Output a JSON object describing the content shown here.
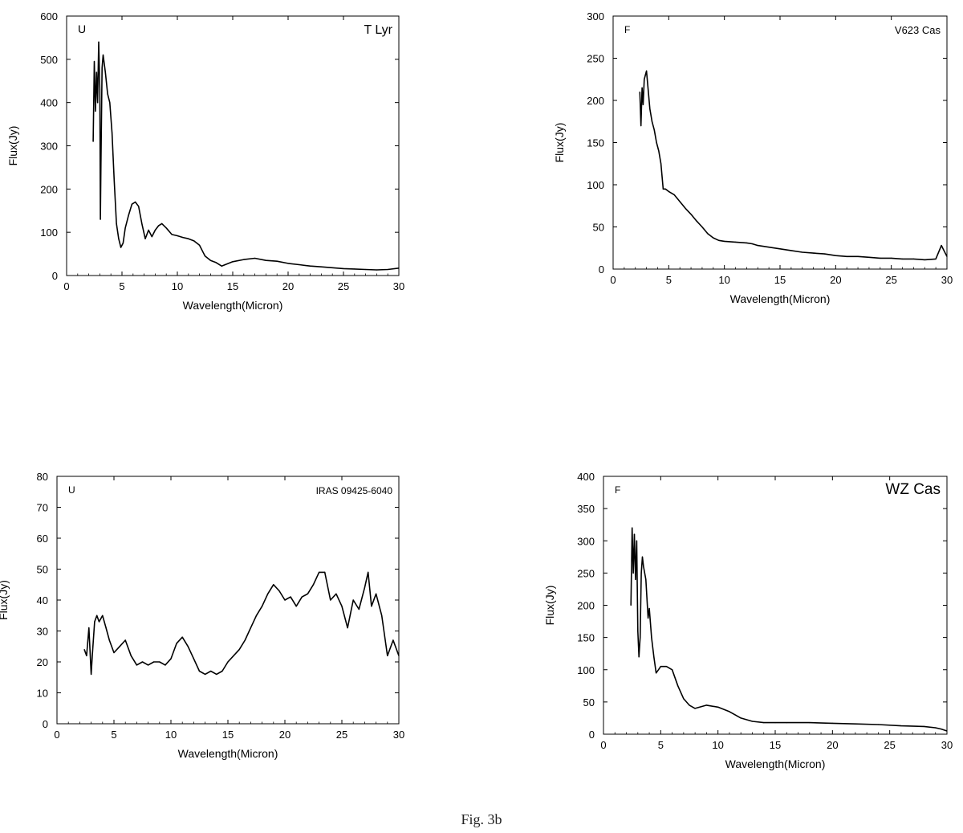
{
  "caption": "Fig. 3b",
  "chart_data": [
    {
      "type": "line",
      "corner_label": "U",
      "object_label": "T Lyr",
      "xlabel": "Wavelength(Micron)",
      "ylabel": "Flux(Jy)",
      "xlim": [
        0,
        30
      ],
      "ylim": [
        0,
        600
      ],
      "xticks": [
        "0",
        "5",
        "10",
        "15",
        "20",
        "25",
        "30"
      ],
      "yticks": [
        "0",
        "100",
        "200",
        "300",
        "400",
        "500",
        "600"
      ],
      "grid": false,
      "series": [
        {
          "x": [
            2.4,
            2.5,
            2.6,
            2.7,
            2.8,
            2.9,
            3.0,
            3.05,
            3.1,
            3.2,
            3.3,
            3.5,
            3.7,
            3.9,
            4.1,
            4.3,
            4.5,
            4.7,
            4.9,
            5.1,
            5.3,
            5.6,
            5.9,
            6.2,
            6.5,
            6.8,
            7.1,
            7.4,
            7.7,
            8.0,
            8.3,
            8.6,
            9.0,
            9.5,
            10.0,
            10.5,
            11.0,
            11.5,
            12.0,
            12.5,
            13.0,
            13.5,
            14.0,
            15.0,
            16.0,
            17.0,
            18.0,
            19.0,
            20.0,
            21.0,
            22.0,
            23.0,
            24.0,
            25.0,
            26.0,
            27.0,
            28.0,
            29.0,
            30.0
          ],
          "y": [
            310,
            495,
            380,
            470,
            400,
            540,
            430,
            130,
            260,
            480,
            510,
            470,
            420,
            400,
            330,
            220,
            120,
            85,
            65,
            75,
            110,
            140,
            165,
            170,
            160,
            120,
            85,
            105,
            90,
            105,
            115,
            120,
            110,
            95,
            92,
            88,
            85,
            80,
            70,
            45,
            35,
            30,
            22,
            32,
            37,
            40,
            35,
            33,
            28,
            25,
            22,
            20,
            18,
            16,
            15,
            14,
            13,
            14,
            17
          ]
        }
      ]
    },
    {
      "type": "line",
      "corner_label": "F",
      "object_label": "V623 Cas",
      "xlabel": "Wavelength(Micron)",
      "ylabel": "Flux(Jy)",
      "xlim": [
        0,
        30
      ],
      "ylim": [
        0,
        300
      ],
      "xticks": [
        "0",
        "5",
        "10",
        "15",
        "20",
        "25",
        "30"
      ],
      "yticks": [
        "0",
        "50",
        "100",
        "150",
        "200",
        "250",
        "300"
      ],
      "grid": false,
      "series": [
        {
          "x": [
            2.4,
            2.5,
            2.6,
            2.7,
            2.8,
            2.9,
            3.0,
            3.1,
            3.3,
            3.5,
            3.7,
            3.9,
            4.1,
            4.3,
            4.5,
            4.7,
            5.0,
            5.5,
            6.0,
            6.5,
            7.0,
            7.5,
            8.0,
            8.5,
            9.0,
            9.5,
            10.0,
            11.0,
            12.0,
            12.5,
            13.0,
            14.0,
            15.0,
            16.0,
            17.0,
            18.0,
            19.0,
            20.0,
            21.0,
            22.0,
            23.0,
            24.0,
            25.0,
            26.0,
            27.0,
            28.0,
            29.0,
            29.5,
            30.0
          ],
          "y": [
            210,
            170,
            215,
            195,
            225,
            230,
            235,
            220,
            190,
            175,
            165,
            150,
            140,
            125,
            95,
            95,
            92,
            88,
            80,
            72,
            65,
            57,
            50,
            42,
            37,
            34,
            33,
            32,
            31,
            30,
            28,
            26,
            24,
            22,
            20,
            19,
            18,
            16,
            15,
            15,
            14,
            13,
            13,
            12,
            12,
            11,
            12,
            28,
            15
          ]
        }
      ]
    },
    {
      "type": "line",
      "corner_label": "U",
      "object_label": "IRAS 09425-6040",
      "xlabel": "Wavelength(Micron)",
      "ylabel": "Flux(Jy)",
      "xlim": [
        0,
        30
      ],
      "ylim": [
        0,
        80
      ],
      "xticks": [
        "0",
        "5",
        "10",
        "15",
        "20",
        "25",
        "30"
      ],
      "yticks": [
        "0",
        "10",
        "20",
        "30",
        "40",
        "50",
        "60",
        "70",
        "80"
      ],
      "grid": false,
      "series": [
        {
          "x": [
            2.4,
            2.6,
            2.8,
            3.0,
            3.1,
            3.3,
            3.5,
            3.7,
            4.0,
            4.3,
            4.6,
            5.0,
            5.5,
            6.0,
            6.5,
            7.0,
            7.5,
            8.0,
            8.5,
            9.0,
            9.5,
            10.0,
            10.5,
            11.0,
            11.5,
            12.0,
            12.5,
            13.0,
            13.5,
            14.0,
            14.5,
            15.0,
            15.5,
            16.0,
            16.5,
            17.0,
            17.5,
            18.0,
            18.5,
            19.0,
            19.5,
            20.0,
            20.5,
            21.0,
            21.5,
            22.0,
            22.5,
            23.0,
            23.5,
            24.0,
            24.5,
            25.0,
            25.5,
            26.0,
            26.5,
            27.0,
            27.3,
            27.6,
            28.0,
            28.5,
            29.0,
            29.5,
            30.0
          ],
          "y": [
            24,
            22,
            31,
            16,
            22,
            33,
            35,
            33,
            35,
            31,
            27,
            23,
            25,
            27,
            22,
            19,
            20,
            19,
            20,
            20,
            19,
            21,
            26,
            28,
            25,
            21,
            17,
            16,
            17,
            16,
            17,
            20,
            22,
            24,
            27,
            31,
            35,
            38,
            42,
            45,
            43,
            40,
            41,
            38,
            41,
            42,
            45,
            49,
            49,
            40,
            42,
            38,
            31,
            40,
            37,
            44,
            49,
            38,
            42,
            35,
            22,
            27,
            22
          ]
        }
      ]
    },
    {
      "type": "line",
      "corner_label": "F",
      "object_label": "WZ Cas",
      "xlabel": "Wavelength(Micron)",
      "ylabel": "Flux(Jy)",
      "xlim": [
        0,
        30
      ],
      "ylim": [
        0,
        400
      ],
      "xticks": [
        "0",
        "5",
        "10",
        "15",
        "20",
        "25",
        "30"
      ],
      "yticks": [
        "0",
        "50",
        "100",
        "150",
        "200",
        "250",
        "300",
        "350",
        "400"
      ],
      "grid": false,
      "series": [
        {
          "x": [
            2.4,
            2.5,
            2.6,
            2.7,
            2.8,
            2.9,
            3.0,
            3.1,
            3.2,
            3.3,
            3.4,
            3.5,
            3.7,
            3.9,
            4.0,
            4.2,
            4.4,
            4.6,
            4.8,
            5.0,
            5.5,
            6.0,
            6.5,
            7.0,
            7.5,
            8.0,
            9.0,
            10.0,
            11.0,
            12.0,
            13.0,
            14.0,
            15.0,
            16.0,
            18.0,
            20.0,
            22.0,
            24.0,
            26.0,
            28.0,
            29.0,
            29.5,
            30.0
          ],
          "y": [
            200,
            320,
            250,
            310,
            240,
            300,
            160,
            120,
            150,
            250,
            275,
            260,
            240,
            180,
            195,
            150,
            120,
            95,
            100,
            105,
            105,
            100,
            75,
            55,
            45,
            40,
            45,
            42,
            35,
            25,
            20,
            18,
            18,
            18,
            18,
            17,
            16,
            15,
            13,
            12,
            10,
            8,
            5
          ]
        }
      ]
    }
  ]
}
